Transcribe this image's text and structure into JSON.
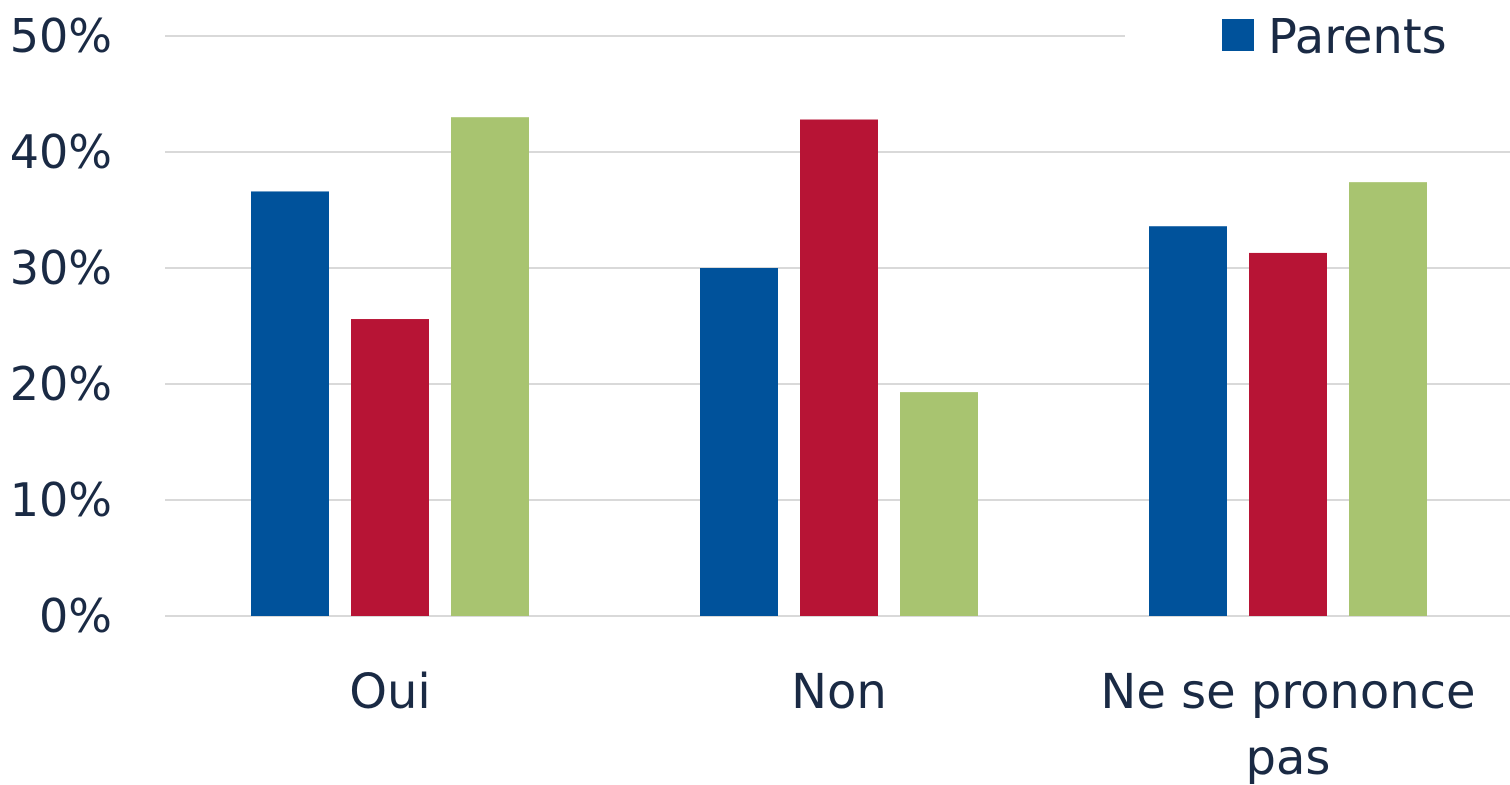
{
  "chart_data": {
    "type": "bar",
    "categories": [
      [
        "Oui"
      ],
      [
        "Non"
      ],
      [
        "Ne se prononce",
        "pas"
      ]
    ],
    "series": [
      {
        "name": "Parents",
        "color": "#00529b",
        "values": [
          36.6,
          30.0,
          33.6
        ]
      },
      {
        "color": "#b71435",
        "values": [
          25.6,
          42.8,
          31.3
        ]
      },
      {
        "color": "#a8c470",
        "values": [
          43.0,
          19.3,
          37.4
        ]
      }
    ],
    "ylim": [
      0,
      50
    ],
    "yticks": [
      "0%",
      "10%",
      "20%",
      "30%",
      "40%",
      "50%"
    ],
    "grid": true,
    "legend_position": "top-right"
  }
}
